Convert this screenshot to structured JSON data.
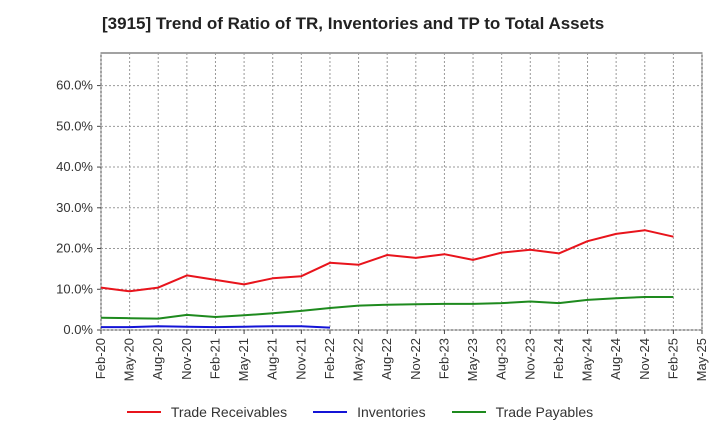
{
  "chart_data": {
    "type": "line",
    "title": "[3915]  Trend of Ratio of TR, Inventories and TP to Total Assets",
    "xlabel": "",
    "ylabel": "",
    "ylim": [
      0,
      0.68
    ],
    "y_ticks": [
      0.0,
      0.1,
      0.2,
      0.3,
      0.4,
      0.5,
      0.6
    ],
    "y_tick_labels": [
      "0.0%",
      "10.0%",
      "20.0%",
      "30.0%",
      "40.0%",
      "50.0%",
      "60.0%"
    ],
    "categories": [
      "Feb-20",
      "May-20",
      "Aug-20",
      "Nov-20",
      "Feb-21",
      "May-21",
      "Aug-21",
      "Nov-21",
      "Feb-22",
      "May-22",
      "Aug-22",
      "Nov-22",
      "Feb-23",
      "May-23",
      "Aug-23",
      "Nov-23",
      "Feb-24",
      "May-24",
      "Aug-24",
      "Nov-24",
      "Feb-25",
      "May-25"
    ],
    "grid": true,
    "legend_position": "bottom",
    "series": [
      {
        "name": "Trade Receivables",
        "color": "#e8141c",
        "values": [
          0.104,
          0.095,
          0.104,
          0.134,
          0.123,
          0.112,
          0.127,
          0.132,
          0.165,
          0.16,
          0.184,
          0.177,
          0.186,
          0.172,
          0.19,
          0.197,
          0.188,
          0.218,
          0.236,
          0.245,
          0.229,
          null
        ]
      },
      {
        "name": "Inventories",
        "color": "#1414d6",
        "values": [
          0.007,
          0.007,
          0.009,
          0.008,
          0.007,
          0.008,
          0.009,
          0.009,
          0.006,
          null,
          null,
          null,
          null,
          null,
          null,
          null,
          null,
          null,
          null,
          null,
          null,
          null
        ]
      },
      {
        "name": "Trade Payables",
        "color": "#1e8a1e",
        "values": [
          0.03,
          0.029,
          0.028,
          0.037,
          0.032,
          0.036,
          0.041,
          0.047,
          0.054,
          0.06,
          0.062,
          0.063,
          0.064,
          0.064,
          0.066,
          0.07,
          0.066,
          0.074,
          0.078,
          0.081,
          0.081,
          null
        ]
      }
    ]
  }
}
